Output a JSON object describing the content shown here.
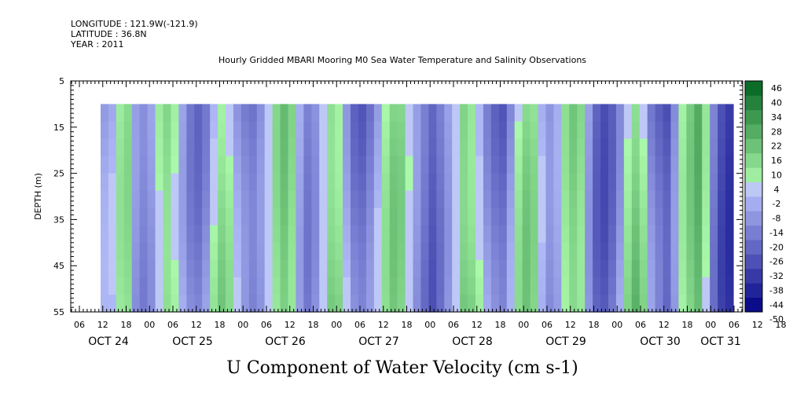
{
  "header": {
    "longitude": "LONGITUDE : 121.9W(-121.9)",
    "latitude": "LATITUDE : 36.8N",
    "year": "YEAR : 2011"
  },
  "chart_data": {
    "type": "heatmap",
    "title": "Hourly Gridded MBARI Mooring M0 Sea Water Temperature and Salinity Observations",
    "xlabel": "U Component of Water Velocity (cm s-1)",
    "ylabel": "DEPTH (m)",
    "yticks": [
      5,
      15,
      25,
      35,
      45,
      55
    ],
    "ylim": [
      5,
      55
    ],
    "y_inverted": true,
    "data_depth_range": [
      10,
      55
    ],
    "x_hour_labels": [
      "06",
      "12",
      "18",
      "00",
      "06",
      "12",
      "18",
      "00",
      "06",
      "12",
      "18",
      "00",
      "06",
      "12",
      "18",
      "00",
      "06",
      "12",
      "18",
      "00",
      "06",
      "12",
      "18",
      "00",
      "06",
      "12",
      "18",
      "00",
      "06",
      "12",
      "18",
      "00"
    ],
    "x_day_labels": [
      "OCT 24",
      "OCT 25",
      "OCT 26",
      "OCT 27",
      "OCT 28",
      "OCT 29",
      "OCT 30",
      "OCT 31"
    ],
    "colorbar": {
      "levels": [
        -50,
        -44,
        -38,
        -32,
        -26,
        -20,
        -14,
        -8,
        -2,
        4,
        10,
        16,
        22,
        28,
        34,
        40,
        46
      ],
      "label_levels": [
        "46",
        "40",
        "34",
        "28",
        "22",
        "16",
        "10",
        "4",
        "-2",
        "-8",
        "-14",
        "-20",
        "-26",
        "-32",
        "-38",
        "-44",
        "-50"
      ]
    },
    "column_profile_note_values": [
      -8,
      -6,
      6,
      10,
      -12,
      -16,
      -10,
      6,
      14,
      8,
      -4,
      -14,
      -18,
      -12,
      4,
      12,
      6,
      -8,
      -16,
      -20,
      -14,
      -2,
      10,
      18,
      12,
      -6,
      -16,
      -10,
      4,
      16,
      12,
      -4,
      -18,
      -22,
      -16,
      -6,
      6,
      14,
      12,
      0,
      -12,
      -20,
      -26,
      -18,
      -8,
      4,
      18,
      14,
      4,
      -10,
      -18,
      -22,
      -10,
      6,
      14,
      10,
      -6,
      -14,
      -8,
      8,
      16,
      12,
      -8,
      -22,
      -26,
      -20,
      -8,
      10,
      18,
      8,
      -14,
      -22,
      -28,
      -14,
      4,
      14,
      22,
      6,
      -18,
      -30,
      -34
    ]
  }
}
